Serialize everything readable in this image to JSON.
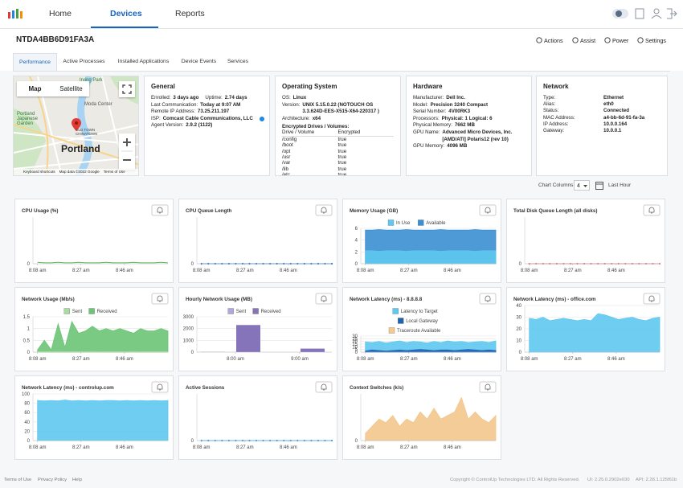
{
  "nav": {
    "tabs": [
      "Home",
      "Devices",
      "Reports"
    ],
    "active": 1
  },
  "device": {
    "name": "NTDA4BB6D91FA3A",
    "actions": [
      "Actions",
      "Assist",
      "Power",
      "Settings"
    ]
  },
  "subtabs": {
    "items": [
      "Performance",
      "Active Processes",
      "Installed Applications",
      "Device Events",
      "Services"
    ],
    "active": 0
  },
  "map": {
    "buttons": [
      "Map",
      "Satellite"
    ],
    "labels": [
      "Irving Park",
      "Moda Center",
      "Portland Japanese Garden",
      "OLD TOWN CHINATOWN",
      "Portland"
    ],
    "footer": [
      "Keyboard shortcuts",
      "Map data ©2022 Google",
      "Terms of Use"
    ]
  },
  "general": {
    "title": "General",
    "rows": [
      [
        [
          "Enrolled:",
          "3 days ago"
        ],
        [
          "Uptime:",
          "2.74 days"
        ]
      ],
      [
        [
          "Last Communication:",
          "Today at 9:07 AM"
        ]
      ],
      [
        [
          "Remote IP Address:",
          "73.25.211.197"
        ]
      ],
      [
        [
          "ISP:",
          "Comcast Cable Communications, LLC"
        ]
      ],
      [
        [
          "Agent Version:",
          "2.9.2 (1122)"
        ]
      ]
    ]
  },
  "os": {
    "title": "Operating System",
    "rows": [
      [
        [
          "OS:",
          "Linux"
        ]
      ],
      [
        [
          "Version:",
          "UNIX 5.15.0.22 (NOTOUCH OS 3.3.624D-EES-X515-X64-220317 )"
        ]
      ],
      [
        [
          "Architecture:",
          "x64"
        ]
      ]
    ],
    "drives_title": "Encrypted Drives / Volumes:",
    "drives_header": [
      "Drive / Volume",
      "Encrypted"
    ],
    "drives": [
      [
        "/config",
        "true"
      ],
      [
        "/boot",
        "true"
      ],
      [
        "/opt",
        "true"
      ],
      [
        "/usr",
        "true"
      ],
      [
        "/var",
        "true"
      ],
      [
        "/lib",
        "true"
      ],
      [
        "/etc",
        "true"
      ]
    ]
  },
  "hardware": {
    "title": "Hardware",
    "rows": [
      [
        [
          "Manufacturer:",
          "Dell Inc."
        ]
      ],
      [
        [
          "Model:",
          "Precision 3240 Compact"
        ]
      ],
      [
        [
          "Serial Number:",
          "4V00RK3"
        ]
      ],
      [
        [
          "Processors:",
          "Physical: 1  Logical: 6"
        ]
      ],
      [
        [
          "Physical Memory:",
          "7662 MB"
        ]
      ],
      [
        [
          "GPU Name:",
          "Advanced Micro Devices, Inc. [AMD/ATI] Polaris12 (rev 10)"
        ]
      ],
      [
        [
          "GPU Memory:",
          "4096 MB"
        ]
      ]
    ]
  },
  "network": {
    "title": "Network",
    "rows": [
      [
        "Type:",
        "Ethernet"
      ],
      [
        "Alias:",
        "eth0"
      ],
      [
        "Status:",
        "Connected"
      ],
      [
        "MAC Address:",
        "a4-bb-6d-91-fa-3a"
      ],
      [
        "IP Address:",
        "10.0.0.164"
      ],
      [
        "Gateway:",
        "10.0.0.1"
      ]
    ]
  },
  "chart_controls": {
    "label": "Chart Columns:",
    "columns": 4,
    "range": "Last Hour"
  },
  "chart_data": [
    {
      "type": "line",
      "title": "CPU Usage (%)",
      "legend": false,
      "x": [
        8,
        11,
        14,
        17,
        20,
        23,
        26,
        29,
        32,
        35,
        38,
        41,
        44,
        47,
        50,
        53,
        56,
        59,
        62,
        65
      ],
      "xlim": [
        6,
        65
      ],
      "xticks": [
        {
          "value": 8,
          "label": "8:08 am"
        },
        {
          "value": 27,
          "label": "8:27 am"
        },
        {
          "value": 46,
          "label": "8:46 am"
        }
      ],
      "ylim": [
        0,
        100
      ],
      "yticks": [
        0
      ],
      "series": [
        {
          "name": "CPU",
          "color": "#5cb85c",
          "values": [
            3,
            2,
            2,
            3,
            2,
            2,
            3,
            2,
            2,
            2,
            3,
            2,
            2,
            2,
            3,
            2,
            2,
            2,
            3,
            2
          ]
        }
      ]
    },
    {
      "type": "line",
      "markers": true,
      "title": "CPU Queue Length",
      "legend": false,
      "x": [
        8,
        11,
        14,
        17,
        20,
        23,
        26,
        29,
        32,
        35,
        38,
        41,
        44,
        47,
        50,
        53,
        56,
        59,
        62,
        65
      ],
      "xlim": [
        6,
        65
      ],
      "xticks": [
        {
          "value": 8,
          "label": "8:08 am"
        },
        {
          "value": 27,
          "label": "8:27 am"
        },
        {
          "value": 46,
          "label": "8:46 am"
        }
      ],
      "ylim": [
        0,
        1
      ],
      "yticks": [
        0
      ],
      "series": [
        {
          "name": "Queue",
          "color": "#1e6fd0",
          "values": [
            0,
            0,
            0,
            0,
            0,
            0,
            0,
            0,
            0,
            0,
            0,
            0,
            0,
            0,
            0,
            0,
            0,
            0,
            0,
            0
          ]
        }
      ]
    },
    {
      "type": "area",
      "title": "Memory Usage (GB)",
      "legend": true,
      "x": [
        8,
        11,
        14,
        17,
        20,
        23,
        26,
        29,
        32,
        35,
        38,
        41,
        44,
        47,
        50,
        53,
        56,
        59,
        62,
        65
      ],
      "xlim": [
        6,
        65
      ],
      "xticks": [
        {
          "value": 8,
          "label": "8:08 am"
        },
        {
          "value": 27,
          "label": "8:27 am"
        },
        {
          "value": 46,
          "label": "8:46 am"
        }
      ],
      "ylim": [
        0,
        6
      ],
      "yticks": [
        0,
        2,
        4,
        6
      ],
      "series": [
        {
          "name": "In Use",
          "color": "#5ec8f0",
          "values": [
            2.2,
            2.2,
            2.1,
            2.2,
            2.2,
            2.2,
            2.1,
            2.2,
            2.2,
            2.2,
            2.2,
            2.1,
            2.2,
            2.2,
            2.2,
            2.2,
            2.1,
            2.2,
            2.2,
            2.2
          ]
        },
        {
          "name": "Available",
          "color": "#3a8fd3",
          "values": [
            5.7,
            5.7,
            5.8,
            5.7,
            5.7,
            5.7,
            5.8,
            5.7,
            5.7,
            5.7,
            5.7,
            5.8,
            5.7,
            5.7,
            5.7,
            5.7,
            5.8,
            5.7,
            5.7,
            5.7
          ]
        }
      ]
    },
    {
      "type": "line",
      "markers": true,
      "title": "Total Disk Queue Length (all disks)",
      "legend": false,
      "x": [
        8,
        11,
        14,
        17,
        20,
        23,
        26,
        29,
        32,
        35,
        38,
        41,
        44,
        47,
        50,
        53,
        56,
        59,
        62,
        65
      ],
      "xlim": [
        6,
        65
      ],
      "xticks": [
        {
          "value": 8,
          "label": "8:08 am"
        },
        {
          "value": 27,
          "label": "8:27 am"
        },
        {
          "value": 46,
          "label": "8:46 am"
        }
      ],
      "ylim": [
        0,
        1
      ],
      "yticks": [
        0
      ],
      "series": [
        {
          "name": "Disk Queue",
          "color": "#e57385",
          "values": [
            0,
            0,
            0,
            0,
            0,
            0,
            0,
            0,
            0,
            0,
            0,
            0,
            0,
            0,
            0,
            0,
            0,
            0,
            0,
            0
          ]
        }
      ]
    },
    {
      "type": "area",
      "title": "Network Usage (Mb/s)",
      "legend": true,
      "x": [
        8,
        11,
        14,
        17,
        20,
        23,
        26,
        29,
        32,
        35,
        38,
        41,
        44,
        47,
        50,
        53,
        56,
        59,
        62,
        65
      ],
      "xlim": [
        6,
        65
      ],
      "xticks": [
        {
          "value": 8,
          "label": "8:08 am"
        },
        {
          "value": 27,
          "label": "8:27 am"
        },
        {
          "value": 46,
          "label": "8:46 am"
        }
      ],
      "ylim": [
        0,
        1.5
      ],
      "yticks": [
        0,
        0.5,
        1,
        1.5
      ],
      "series": [
        {
          "name": "Sent",
          "color": "#a8dba0",
          "values": [
            0.02,
            0.02,
            0.02,
            0.03,
            0.02,
            0.02,
            0.02,
            0.02,
            0.03,
            0.02,
            0.02,
            0.02,
            0.02,
            0.02,
            0.03,
            0.02,
            0.02,
            0.02,
            0.02,
            0.02
          ]
        },
        {
          "name": "Received",
          "color": "#6cc475",
          "values": [
            0.1,
            0.5,
            0.1,
            1.2,
            0.2,
            1.3,
            0.8,
            0.9,
            1.1,
            0.9,
            1.0,
            0.9,
            1.0,
            0.9,
            0.8,
            1.0,
            0.9,
            0.9,
            1.0,
            0.9
          ]
        }
      ]
    },
    {
      "type": "bar",
      "title": "Hourly Network Usage (MB)",
      "legend": true,
      "x": [
        7.65,
        8.2,
        9.2
      ],
      "xlim": [
        7.4,
        9.5
      ],
      "xticks": [
        {
          "value": 8,
          "label": "8:00 am"
        },
        {
          "value": 9,
          "label": "9:00 am"
        }
      ],
      "ylim": [
        0,
        3000
      ],
      "yticks": [
        0,
        1000,
        2000,
        3000
      ],
      "series": [
        {
          "name": "Sent",
          "color": "#b3a6dd",
          "values": [
            30,
            0,
            0
          ]
        },
        {
          "name": "Received",
          "color": "#8674ba",
          "values": [
            0,
            2300,
            300
          ]
        }
      ]
    },
    {
      "type": "area",
      "title": "Network Latency (ms) - 8.8.8.8",
      "legend": true,
      "x": [
        8,
        11,
        14,
        17,
        20,
        23,
        26,
        29,
        32,
        35,
        38,
        41,
        44,
        47,
        50,
        53,
        56,
        59,
        62,
        65
      ],
      "xlim": [
        6,
        65
      ],
      "xticks": [
        {
          "value": 8,
          "label": "8:08 am"
        },
        {
          "value": 27,
          "label": "8:27 am"
        },
        {
          "value": 46,
          "label": "8:46 am"
        }
      ],
      "ylim": [
        0,
        30
      ],
      "yticks": [
        0,
        5,
        10,
        15,
        20,
        25,
        30
      ],
      "series": [
        {
          "name": "Latency to Target",
          "color": "#5ec8f0",
          "values": [
            19,
            18,
            20,
            17,
            19,
            21,
            18,
            20,
            19,
            17,
            20,
            18,
            21,
            19,
            20,
            18,
            19,
            20,
            18,
            21
          ]
        },
        {
          "name": "Local Gateway",
          "color": "#1f63b5",
          "values": [
            2,
            4,
            3,
            2,
            3,
            4,
            3,
            4,
            5,
            4,
            3,
            4,
            4,
            3,
            4,
            5,
            4,
            3,
            4,
            3
          ]
        },
        {
          "name": "Traceroute Available",
          "color": "#f5c992"
        }
      ]
    },
    {
      "type": "area",
      "title": "Network Latency (ms) - office.com",
      "legend": false,
      "x": [
        8,
        11,
        14,
        17,
        20,
        23,
        26,
        29,
        32,
        35,
        38,
        41,
        44,
        47,
        50,
        53,
        56,
        59,
        62,
        65
      ],
      "xlim": [
        6,
        65
      ],
      "xticks": [
        {
          "value": 8,
          "label": "8:08 am"
        },
        {
          "value": 27,
          "label": "8:27 am"
        },
        {
          "value": 46,
          "label": "8:46 am"
        }
      ],
      "ylim": [
        0,
        40
      ],
      "yticks": [
        0,
        10,
        20,
        30,
        40
      ],
      "series": [
        {
          "name": "Latency to Target",
          "color": "#5ec8f0",
          "values": [
            29,
            28,
            30,
            27,
            28,
            29,
            28,
            27,
            28,
            27,
            33,
            32,
            30,
            28,
            29,
            30,
            28,
            27,
            29,
            30
          ]
        }
      ]
    },
    {
      "type": "area",
      "title": "Network Latency (ms) - controlup.com",
      "legend": false,
      "x": [
        8,
        11,
        14,
        17,
        20,
        23,
        26,
        29,
        32,
        35,
        38,
        41,
        44,
        47,
        50,
        53,
        56,
        59,
        62,
        65
      ],
      "xlim": [
        6,
        65
      ],
      "xticks": [
        {
          "value": 8,
          "label": "8:08 am"
        },
        {
          "value": 27,
          "label": "8:27 am"
        },
        {
          "value": 46,
          "label": "8:46 am"
        }
      ],
      "ylim": [
        0,
        100
      ],
      "yticks": [
        0,
        20,
        40,
        60,
        80,
        100
      ],
      "series": [
        {
          "name": "Latency to Target",
          "color": "#5ec8f0",
          "values": [
            86,
            85,
            86,
            85,
            87,
            85,
            86,
            85,
            86,
            85,
            86,
            86,
            85,
            86,
            85,
            86,
            85,
            86,
            85,
            86
          ]
        }
      ]
    },
    {
      "type": "line",
      "markers": true,
      "title": "Active Sessions",
      "legend": false,
      "x": [
        8,
        11,
        14,
        17,
        20,
        23,
        26,
        29,
        32,
        35,
        38,
        41,
        44,
        47,
        50,
        53,
        56,
        59,
        62,
        65
      ],
      "xlim": [
        6,
        65
      ],
      "xticks": [
        {
          "value": 8,
          "label": "8:08 am"
        },
        {
          "value": 27,
          "label": "8:27 am"
        },
        {
          "value": 46,
          "label": "8:46 am"
        }
      ],
      "ylim": [
        0,
        1
      ],
      "yticks": [
        0
      ],
      "series": [
        {
          "name": "Sessions",
          "color": "#2196f3",
          "values": [
            0,
            0,
            0,
            0,
            0,
            0,
            0,
            0,
            0,
            0,
            0,
            0,
            0,
            0,
            0,
            0,
            0,
            0,
            0,
            0
          ]
        }
      ]
    },
    {
      "type": "area",
      "title": "Context Switches (k/s)",
      "legend": false,
      "x": [
        8,
        11,
        14,
        17,
        20,
        23,
        26,
        29,
        32,
        35,
        38,
        41,
        44,
        47,
        50,
        53,
        56,
        59,
        62,
        65
      ],
      "xlim": [
        6,
        65
      ],
      "xticks": [
        {
          "value": 8,
          "label": "8:08 am"
        },
        {
          "value": 27,
          "label": "8:27 am"
        },
        {
          "value": 46,
          "label": "8:46 am"
        }
      ],
      "ylim": [
        0,
        6.5
      ],
      "yticks": [
        0
      ],
      "series": [
        {
          "name": "Context Switches",
          "color": "#f3c68c",
          "values": [
            1,
            2,
            3,
            2.5,
            3.5,
            2,
            3,
            2.5,
            4,
            3,
            4.5,
            3,
            3.5,
            4,
            6,
            3,
            4,
            3,
            2.5,
            3.5
          ]
        }
      ]
    }
  ],
  "footer": {
    "links": [
      "Terms of Use",
      "Privacy Policy",
      "Help"
    ],
    "copyright": "Copyright © ControlUp Technologies LTD. All Rights Reserved.",
    "ui": "UI: 2.25.0.2902e030",
    "api": "API: 2.28.1.125f61b"
  }
}
